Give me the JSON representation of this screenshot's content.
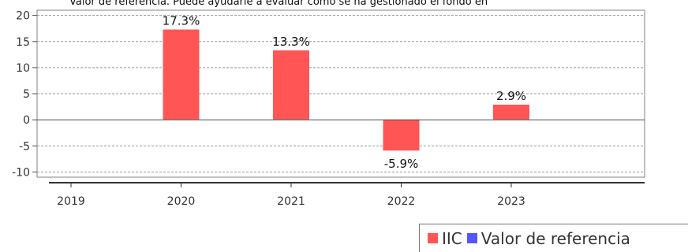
{
  "chart_data": {
    "type": "bar",
    "title": "Valor de referencia. Puede ayudarle a evaluar cómo se ha gestionado el fondo en",
    "categories": [
      "2019",
      "2020",
      "2021",
      "2022",
      "2023"
    ],
    "series": [
      {
        "name": "IIC",
        "values": [
          null,
          17.3,
          13.3,
          -5.9,
          2.9
        ],
        "labels": [
          "",
          "17.3%",
          "13.3%",
          "-5.9%",
          "2.9%"
        ],
        "color": "#ff5555"
      },
      {
        "name": "Valor de referencia",
        "values": [
          null,
          null,
          null,
          null,
          null
        ],
        "color": "#5555ff"
      }
    ],
    "yticks": [
      "20",
      "15",
      "10",
      "5",
      "0",
      "-5",
      "-10"
    ],
    "ylim": [
      -11,
      21
    ],
    "grid": true,
    "legend_position": "bottom-right"
  }
}
